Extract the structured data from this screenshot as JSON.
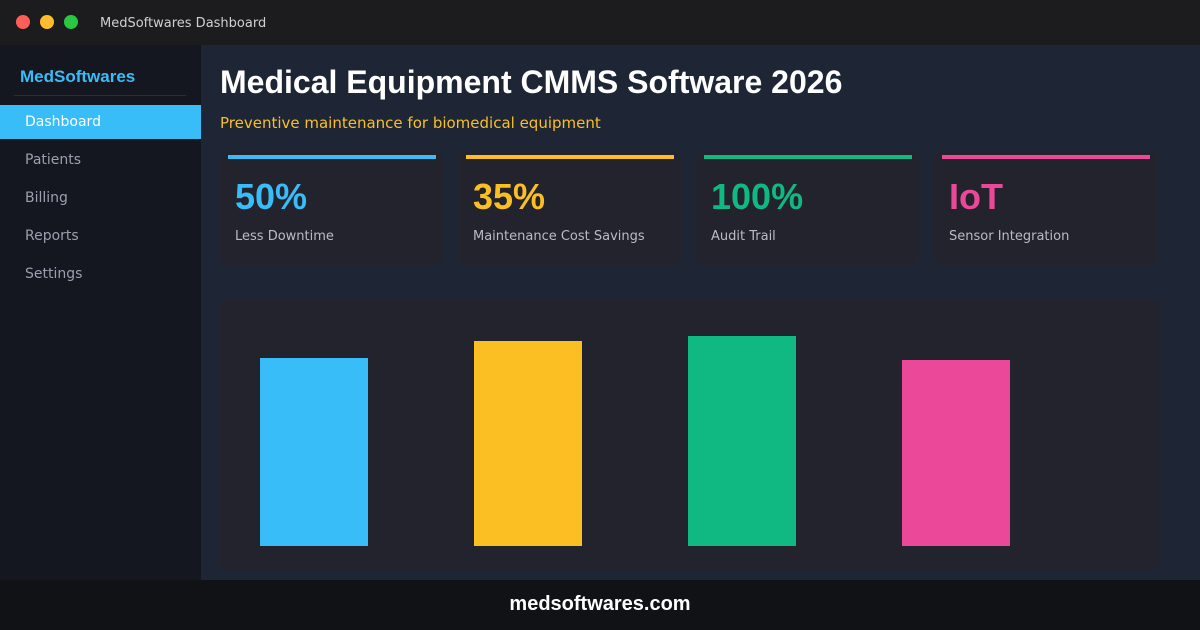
{
  "window": {
    "title": "MedSoftwares Dashboard"
  },
  "sidebar": {
    "brand": "MedSoftwares",
    "items": [
      "Dashboard",
      "Patients",
      "Billing",
      "Reports",
      "Settings"
    ]
  },
  "header": {
    "title": "Medical Equipment CMMS Software 2026",
    "subtitle": "Preventive maintenance for biomedical equipment"
  },
  "cards": [
    {
      "value": "50%",
      "label": "Less Downtime",
      "color": "#38bdf8"
    },
    {
      "value": "35%",
      "label": "Maintenance Cost Savings",
      "color": "#fbbf24"
    },
    {
      "value": "100%",
      "label": "Audit Trail",
      "color": "#10b981"
    },
    {
      "value": "IoT",
      "label": "Sensor Integration",
      "color": "#ec4899"
    }
  ],
  "chart_data": {
    "type": "bar",
    "values": [
      188,
      205,
      210,
      186
    ],
    "colors": [
      "#38bdf8",
      "#fbbf24",
      "#10b981",
      "#ec4899"
    ],
    "ylim": [
      0,
      226
    ]
  },
  "footer": {
    "text": "medsoftwares.com"
  }
}
